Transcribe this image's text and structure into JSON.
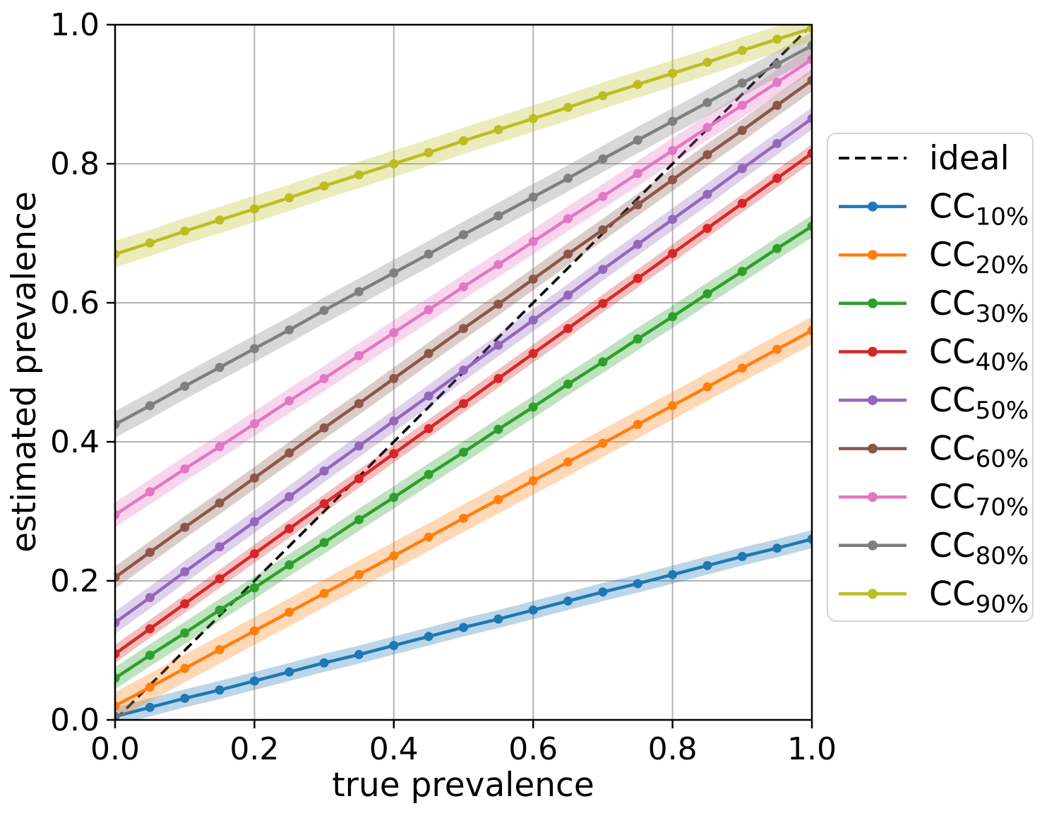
{
  "chart_data": {
    "type": "line",
    "title": "",
    "xlabel": "true prevalence",
    "ylabel": "estimated prevalence",
    "xlim": [
      0.0,
      1.0
    ],
    "ylim": [
      0.0,
      1.0
    ],
    "xticks": [
      0.0,
      0.2,
      0.4,
      0.6,
      0.8,
      1.0
    ],
    "yticks": [
      0.0,
      0.2,
      0.4,
      0.6,
      0.8,
      1.0
    ],
    "grid": true,
    "legend_position": "outside-right",
    "ideal": {
      "label": "ideal",
      "color": "#000000",
      "style": "dashed",
      "x": [
        0.0,
        1.0
      ],
      "y": [
        0.0,
        1.0
      ]
    },
    "x": [
      0.0,
      0.05,
      0.1,
      0.15,
      0.2,
      0.25,
      0.3,
      0.35,
      0.4,
      0.45,
      0.5,
      0.55,
      0.6,
      0.65,
      0.7,
      0.75,
      0.8,
      0.85,
      0.9,
      0.95,
      1.0
    ],
    "series": [
      {
        "label_main": "CC",
        "label_sub": "10%",
        "color": "#1f77b4",
        "band_halfwidth": 0.013,
        "values": [
          0.005,
          0.018,
          0.031,
          0.043,
          0.056,
          0.069,
          0.082,
          0.094,
          0.107,
          0.12,
          0.133,
          0.145,
          0.158,
          0.171,
          0.184,
          0.196,
          0.209,
          0.222,
          0.235,
          0.247,
          0.26
        ]
      },
      {
        "label_main": "CC",
        "label_sub": "20%",
        "color": "#ff7f0e",
        "band_halfwidth": 0.02,
        "values": [
          0.02,
          0.047,
          0.074,
          0.101,
          0.128,
          0.155,
          0.182,
          0.209,
          0.236,
          0.263,
          0.29,
          0.317,
          0.344,
          0.371,
          0.398,
          0.425,
          0.452,
          0.479,
          0.506,
          0.533,
          0.56
        ]
      },
      {
        "label_main": "CC",
        "label_sub": "30%",
        "color": "#2ca02c",
        "band_halfwidth": 0.016,
        "values": [
          0.06,
          0.093,
          0.125,
          0.158,
          0.19,
          0.223,
          0.255,
          0.288,
          0.32,
          0.353,
          0.385,
          0.418,
          0.45,
          0.483,
          0.515,
          0.548,
          0.58,
          0.613,
          0.645,
          0.678,
          0.71
        ]
      },
      {
        "label_main": "CC",
        "label_sub": "40%",
        "color": "#d62728",
        "band_halfwidth": 0.013,
        "values": [
          0.095,
          0.131,
          0.167,
          0.203,
          0.239,
          0.275,
          0.311,
          0.347,
          0.383,
          0.419,
          0.455,
          0.491,
          0.527,
          0.563,
          0.599,
          0.635,
          0.671,
          0.707,
          0.743,
          0.779,
          0.815
        ]
      },
      {
        "label_main": "CC",
        "label_sub": "50%",
        "color": "#9467bd",
        "band_halfwidth": 0.016,
        "values": [
          0.14,
          0.176,
          0.213,
          0.249,
          0.285,
          0.321,
          0.358,
          0.394,
          0.43,
          0.466,
          0.503,
          0.539,
          0.575,
          0.611,
          0.648,
          0.684,
          0.72,
          0.756,
          0.793,
          0.829,
          0.865
        ]
      },
      {
        "label_main": "CC",
        "label_sub": "60%",
        "color": "#8c564b",
        "band_halfwidth": 0.016,
        "values": [
          0.205,
          0.241,
          0.277,
          0.312,
          0.348,
          0.384,
          0.42,
          0.455,
          0.491,
          0.527,
          0.563,
          0.598,
          0.634,
          0.67,
          0.705,
          0.741,
          0.777,
          0.813,
          0.848,
          0.884,
          0.92
        ]
      },
      {
        "label_main": "CC",
        "label_sub": "70%",
        "color": "#e377c2",
        "band_halfwidth": 0.018,
        "values": [
          0.295,
          0.328,
          0.361,
          0.393,
          0.426,
          0.459,
          0.491,
          0.524,
          0.557,
          0.59,
          0.623,
          0.655,
          0.688,
          0.721,
          0.753,
          0.786,
          0.819,
          0.852,
          0.884,
          0.917,
          0.95
        ]
      },
      {
        "label_main": "CC",
        "label_sub": "80%",
        "color": "#7f7f7f",
        "band_halfwidth": 0.019,
        "values": [
          0.425,
          0.452,
          0.48,
          0.507,
          0.534,
          0.561,
          0.589,
          0.616,
          0.643,
          0.67,
          0.698,
          0.725,
          0.752,
          0.779,
          0.807,
          0.834,
          0.861,
          0.888,
          0.916,
          0.943,
          0.97
        ]
      },
      {
        "label_main": "CC",
        "label_sub": "90%",
        "color": "#bcbd22",
        "band_halfwidth": 0.019,
        "values": [
          0.67,
          0.686,
          0.703,
          0.719,
          0.735,
          0.751,
          0.768,
          0.784,
          0.8,
          0.816,
          0.833,
          0.849,
          0.865,
          0.881,
          0.898,
          0.914,
          0.93,
          0.946,
          0.963,
          0.979,
          0.995
        ]
      }
    ]
  }
}
